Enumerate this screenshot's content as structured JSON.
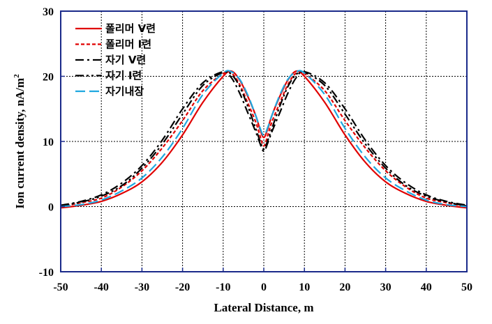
{
  "chart_data": {
    "type": "line",
    "title": "",
    "xlabel": "Lateral Distance, m",
    "ylabel": "Ion current  density, nA/m",
    "ylabel_sup": "2",
    "xlim": [
      -50,
      50
    ],
    "ylim": [
      -10,
      30
    ],
    "x_ticks": [
      -50,
      -40,
      -30,
      -20,
      -10,
      0,
      10,
      20,
      30,
      40,
      50
    ],
    "y_ticks": [
      -10,
      0,
      10,
      20,
      30
    ],
    "grid": true,
    "legend_position": "top-left",
    "series": [
      {
        "name": "폴리머 V련",
        "color": "#e00000",
        "dash": "solid",
        "x": [
          -50,
          -45,
          -40,
          -35,
          -30,
          -25,
          -20,
          -15,
          -10,
          -8,
          -6,
          -4,
          -2,
          -1,
          0,
          1,
          2,
          4,
          6,
          8,
          10,
          15,
          20,
          25,
          30,
          35,
          40,
          45,
          50
        ],
        "y": [
          -0.2,
          0.2,
          0.8,
          2.0,
          3.8,
          6.8,
          11.0,
          16.0,
          20.0,
          20.8,
          19.5,
          17.0,
          14.0,
          12.0,
          10.6,
          12.0,
          14.0,
          17.0,
          19.5,
          20.8,
          20.0,
          16.0,
          11.0,
          6.8,
          3.8,
          2.0,
          0.8,
          0.2,
          -0.2
        ]
      },
      {
        "name": "폴리머 I련",
        "color": "#e00000",
        "dash": "short",
        "x": [
          -50,
          -45,
          -40,
          -35,
          -30,
          -25,
          -20,
          -15,
          -10,
          -8,
          -6,
          -4,
          -2,
          -1,
          0,
          1,
          2,
          4,
          6,
          8,
          10,
          15,
          20,
          25,
          30,
          35,
          40,
          45,
          50
        ],
        "y": [
          0.0,
          0.6,
          1.3,
          3.0,
          5.5,
          9.0,
          13.2,
          17.8,
          20.4,
          20.5,
          18.8,
          16.0,
          13.0,
          11.0,
          9.3,
          11.0,
          13.0,
          16.0,
          18.8,
          20.5,
          20.4,
          17.8,
          13.2,
          9.0,
          5.5,
          3.0,
          1.3,
          0.6,
          0.0
        ]
      },
      {
        "name": "자기 V련",
        "color": "#000000",
        "dash": "dashdot",
        "x": [
          -50,
          -45,
          -40,
          -35,
          -30,
          -25,
          -20,
          -15,
          -10,
          -8,
          -6,
          -4,
          -2,
          -1,
          0,
          1,
          2,
          4,
          6,
          8,
          10,
          15,
          20,
          25,
          30,
          35,
          40,
          45,
          50
        ],
        "y": [
          0.2,
          0.8,
          1.8,
          3.6,
          6.3,
          10.2,
          15.0,
          19.0,
          20.7,
          19.8,
          17.5,
          14.5,
          11.5,
          9.8,
          8.5,
          9.8,
          11.5,
          14.5,
          17.5,
          19.8,
          20.7,
          19.0,
          15.0,
          10.2,
          6.3,
          3.6,
          1.8,
          0.8,
          0.2
        ]
      },
      {
        "name": "자기 I련",
        "color": "#000000",
        "dash": "dashdotdot",
        "x": [
          -50,
          -45,
          -40,
          -35,
          -30,
          -25,
          -20,
          -15,
          -10,
          -8,
          -6,
          -4,
          -2,
          -1,
          0,
          1,
          2,
          4,
          6,
          8,
          10,
          15,
          20,
          25,
          30,
          35,
          40,
          45,
          50
        ],
        "y": [
          0.1,
          0.7,
          1.6,
          3.2,
          5.9,
          9.6,
          14.2,
          18.6,
          20.6,
          20.3,
          18.5,
          15.5,
          12.0,
          10.2,
          8.8,
          10.2,
          12.0,
          15.5,
          18.5,
          20.3,
          20.6,
          18.6,
          14.2,
          9.6,
          5.9,
          3.2,
          1.6,
          0.7,
          0.1
        ]
      },
      {
        "name": "자기내장",
        "color": "#1fa8e0",
        "dash": "long",
        "x": [
          -50,
          -45,
          -40,
          -35,
          -30,
          -25,
          -20,
          -15,
          -10,
          -8,
          -6,
          -4,
          -2,
          -1,
          0,
          1,
          2,
          4,
          6,
          8,
          10,
          15,
          20,
          25,
          30,
          35,
          40,
          45,
          50
        ],
        "y": [
          0.0,
          0.3,
          1.0,
          2.4,
          4.4,
          7.6,
          12.0,
          17.2,
          20.5,
          20.7,
          19.6,
          17.2,
          14.0,
          12.2,
          10.9,
          12.2,
          14.0,
          17.2,
          19.6,
          20.7,
          20.5,
          17.2,
          12.0,
          7.6,
          4.4,
          2.4,
          1.0,
          0.3,
          0.0
        ]
      }
    ]
  }
}
